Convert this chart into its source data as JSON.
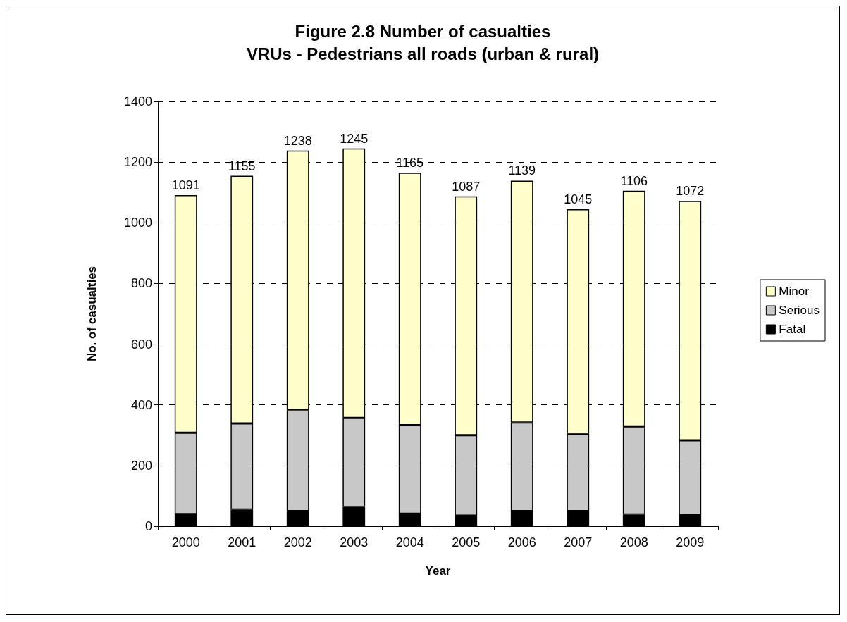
{
  "chart_data": {
    "type": "bar",
    "title": "Figure 2.8 Number of casualties\nVRUs - Pedestrians all roads (urban & rural)",
    "xlabel": "Year",
    "ylabel": "No. of casualties",
    "categories": [
      "2000",
      "2001",
      "2002",
      "2003",
      "2004",
      "2005",
      "2006",
      "2007",
      "2008",
      "2009"
    ],
    "stacked": true,
    "series": [
      {
        "name": "Fatal",
        "color": "#000000",
        "values": [
          40,
          55,
          50,
          64,
          41,
          35,
          50,
          50,
          39,
          37
        ]
      },
      {
        "name": "Serious",
        "color": "#c8c8c8",
        "values": [
          268,
          284,
          332,
          293,
          292,
          265,
          292,
          255,
          288,
          246
        ]
      },
      {
        "name": "Minor",
        "color": "#ffffcc",
        "values": [
          783,
          816,
          856,
          888,
          832,
          787,
          797,
          740,
          779,
          789
        ]
      }
    ],
    "totals": [
      "1091",
      "1155",
      "1238",
      "1245",
      "1165",
      "1087",
      "1139",
      "1045",
      "1106",
      "1072"
    ],
    "ylim": [
      0,
      1400
    ],
    "yticks": [
      0,
      200,
      400,
      600,
      800,
      1000,
      1200,
      1400
    ],
    "grid": "y",
    "legend": "right"
  }
}
